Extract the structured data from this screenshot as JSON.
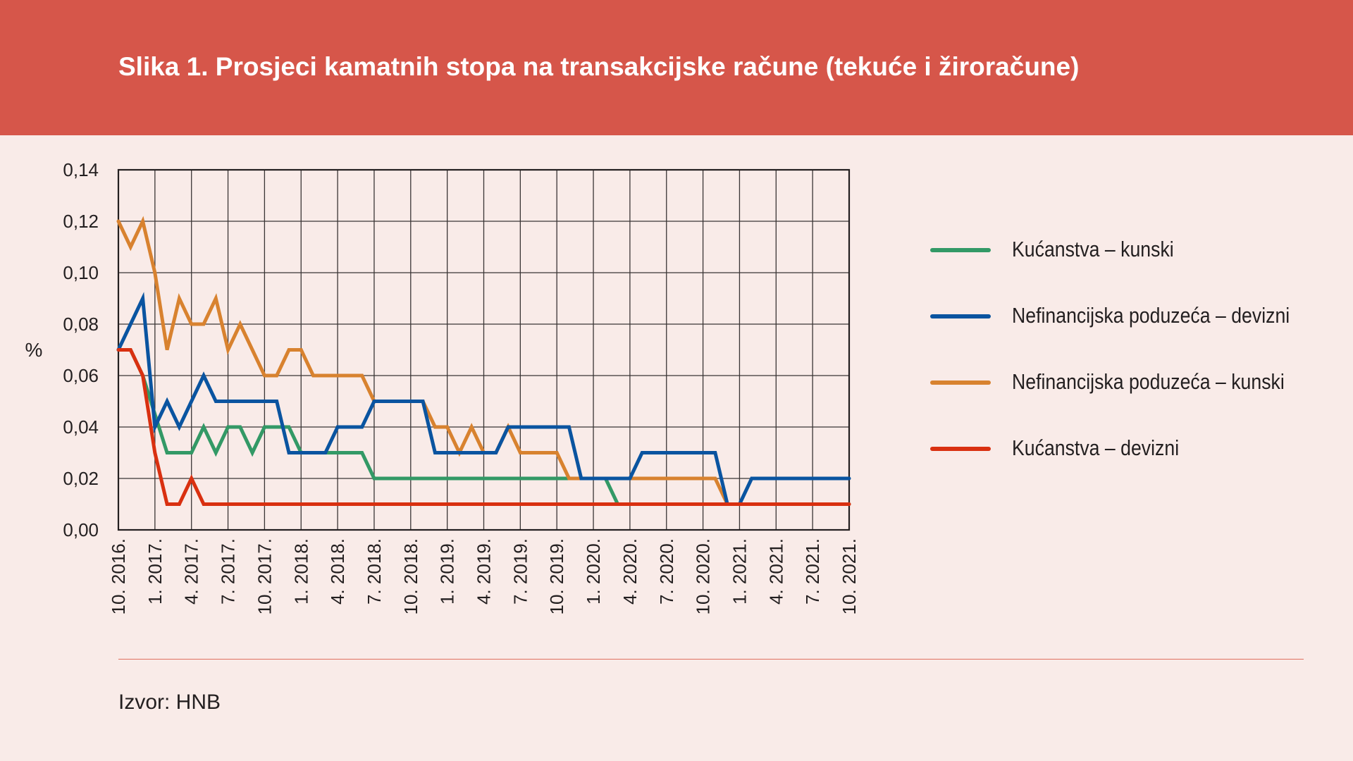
{
  "title": "Slika 1. Prosjeci kamatnih stopa na transakcijske račune (tekuće i žiroračune)",
  "source": "Izvor: HNB",
  "colors": {
    "header_bg": "#d6564a",
    "page_bg": "#f9ebe8",
    "green": "#339966",
    "blue": "#0a54a0",
    "orange": "#d8822f",
    "red": "#d93010"
  },
  "chart_data": {
    "type": "line",
    "title": "",
    "xlabel": "",
    "ylabel": "%",
    "ylim": [
      0,
      0.14
    ],
    "yticks": [
      "0,00",
      "0,02",
      "0,04",
      "0,06",
      "0,08",
      "0,10",
      "0,12",
      "0,14"
    ],
    "grid": true,
    "legend_position": "right",
    "xtick_labels": [
      "10. 2016.",
      "1. 2017.",
      "4. 2017.",
      "7. 2017.",
      "10. 2017.",
      "1. 2018.",
      "4. 2018.",
      "7. 2018.",
      "10. 2018.",
      "1. 2019.",
      "4. 2019.",
      "7. 2019.",
      "10. 2019.",
      "1. 2020.",
      "4. 2020.",
      "7. 2020.",
      "10. 2020.",
      "1. 2021.",
      "4. 2021.",
      "7. 2021.",
      "10. 2021."
    ],
    "x_frequency": "monthly, 10. 2016. – 10. 2021.",
    "series": [
      {
        "name": "Kućanstva – kunski",
        "color": "#339966",
        "values": [
          0.07,
          0.07,
          0.06,
          0.045,
          0.03,
          0.03,
          0.03,
          0.04,
          0.03,
          0.04,
          0.04,
          0.03,
          0.04,
          0.04,
          0.04,
          0.03,
          0.03,
          0.03,
          0.03,
          0.03,
          0.03,
          0.02,
          0.02,
          0.02,
          0.02,
          0.02,
          0.02,
          0.02,
          0.02,
          0.02,
          0.02,
          0.02,
          0.02,
          0.02,
          0.02,
          0.02,
          0.02,
          0.02,
          0.02,
          0.02,
          0.02,
          0.01,
          0.01,
          0.01,
          0.01,
          0.01,
          0.01,
          0.01,
          0.01,
          0.01,
          0.01,
          0.01,
          0.01,
          0.01,
          0.01,
          0.01,
          0.01,
          0.01,
          0.01,
          0.01,
          0.01
        ]
      },
      {
        "name": "Nefinancijska poduzeća – devizni",
        "color": "#0a54a0",
        "values": [
          0.07,
          0.08,
          0.09,
          0.04,
          0.05,
          0.04,
          0.05,
          0.06,
          0.05,
          0.05,
          0.05,
          0.05,
          0.05,
          0.05,
          0.03,
          0.03,
          0.03,
          0.03,
          0.04,
          0.04,
          0.04,
          0.05,
          0.05,
          0.05,
          0.05,
          0.05,
          0.03,
          0.03,
          0.03,
          0.03,
          0.03,
          0.03,
          0.04,
          0.04,
          0.04,
          0.04,
          0.04,
          0.04,
          0.02,
          0.02,
          0.02,
          0.02,
          0.02,
          0.03,
          0.03,
          0.03,
          0.03,
          0.03,
          0.03,
          0.03,
          0.01,
          0.01,
          0.02,
          0.02,
          0.02,
          0.02,
          0.02,
          0.02,
          0.02,
          0.02,
          0.02
        ]
      },
      {
        "name": "Nefinancijska poduzeća – kunski",
        "color": "#d8822f",
        "values": [
          0.12,
          0.11,
          0.12,
          0.1,
          0.07,
          0.09,
          0.08,
          0.08,
          0.09,
          0.07,
          0.08,
          0.07,
          0.06,
          0.06,
          0.07,
          0.07,
          0.06,
          0.06,
          0.06,
          0.06,
          0.06,
          0.05,
          0.05,
          0.05,
          0.05,
          0.05,
          0.04,
          0.04,
          0.03,
          0.04,
          0.03,
          0.03,
          0.04,
          0.03,
          0.03,
          0.03,
          0.03,
          0.02,
          0.02,
          0.02,
          0.02,
          0.02,
          0.02,
          0.02,
          0.02,
          0.02,
          0.02,
          0.02,
          0.02,
          0.02,
          0.01,
          0.01,
          0.01,
          0.01,
          0.01,
          0.01,
          0.01,
          0.01,
          0.01,
          0.01,
          0.01
        ]
      },
      {
        "name": "Kućanstva – devizni",
        "color": "#d93010",
        "values": [
          0.07,
          0.07,
          0.06,
          0.03,
          0.01,
          0.01,
          0.02,
          0.01,
          0.01,
          0.01,
          0.01,
          0.01,
          0.01,
          0.01,
          0.01,
          0.01,
          0.01,
          0.01,
          0.01,
          0.01,
          0.01,
          0.01,
          0.01,
          0.01,
          0.01,
          0.01,
          0.01,
          0.01,
          0.01,
          0.01,
          0.01,
          0.01,
          0.01,
          0.01,
          0.01,
          0.01,
          0.01,
          0.01,
          0.01,
          0.01,
          0.01,
          0.01,
          0.01,
          0.01,
          0.01,
          0.01,
          0.01,
          0.01,
          0.01,
          0.01,
          0.01,
          0.01,
          0.01,
          0.01,
          0.01,
          0.01,
          0.01,
          0.01,
          0.01,
          0.01,
          0.01
        ]
      }
    ],
    "draw_order": [
      "Kućanstva – kunski",
      "Nefinancijska poduzeća – kunski",
      "Nefinancijska poduzeća – devizni",
      "Kućanstva – devizni"
    ]
  }
}
